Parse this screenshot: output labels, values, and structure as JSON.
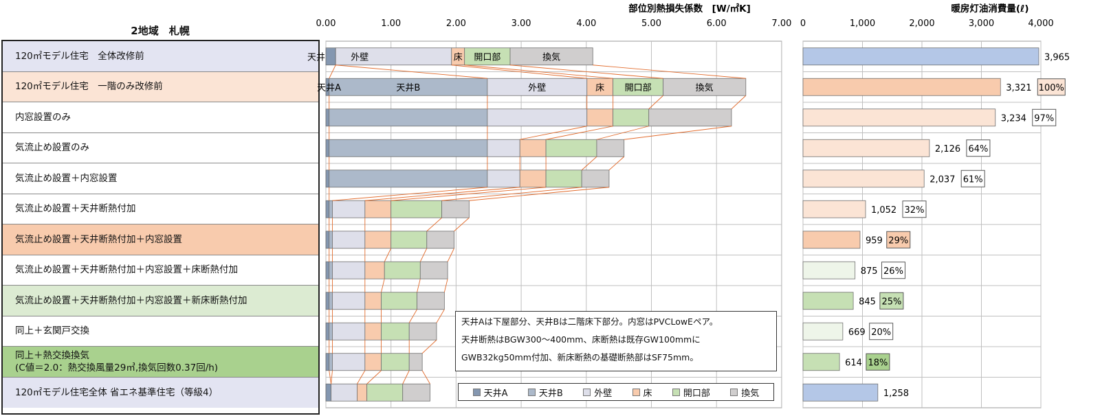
{
  "region_title": "2地域　札幌",
  "rows": [
    {
      "label": "120㎡モデル住宅　全体改修前",
      "bg": "#e3e4f2"
    },
    {
      "label": "120㎡モデル住宅　一階のみ改修前",
      "bg": "#fbe4d5"
    },
    {
      "label": "内窓設置のみ",
      "bg": "#ffffff"
    },
    {
      "label": "気流止め設置のみ",
      "bg": "#ffffff"
    },
    {
      "label": "気流止め設置＋内窓設置",
      "bg": "#ffffff"
    },
    {
      "label": "気流止め設置＋天井断熱付加",
      "bg": "#ffffff"
    },
    {
      "label": "気流止め設置＋天井断熱付加＋内窓設置",
      "bg": "#f8cbad"
    },
    {
      "label": "気流止め設置＋天井断熱付加＋内窓設置＋床断熱付加",
      "bg": "#ffffff"
    },
    {
      "label": "気流止め設置＋天井断熱付加＋内窓設置＋新床断熱付加",
      "bg": "#dcebd2"
    },
    {
      "label": "同上＋玄関戸交換",
      "bg": "#ffffff"
    },
    {
      "label": "同上＋熱交換換気\n(C値＝2.0：熱交換風量29㎥,換気回数0.37回/h)",
      "bg": "#a9d18e"
    },
    {
      "label": "120㎡モデル住宅全体 省エネ基準住宅（等級4）",
      "bg": "#e3e4f2"
    }
  ],
  "colors": {
    "天井A": "#8497b0",
    "天井B": "#acb9ca",
    "外壁": "#dedfea",
    "床": "#f8cbad",
    "開口部": "#c6e0b4",
    "換気": "#d0cece",
    "connector": "#e26b2c",
    "grid": "#bfbfbf"
  },
  "chart_data": [
    {
      "type": "bar",
      "orientation": "horizontal",
      "stacked": true,
      "title": "部位別熱損失係数　[W/㎡K]",
      "xlim": [
        0,
        7
      ],
      "xticks": [
        "0.00",
        "1.00",
        "2.00",
        "3.00",
        "4.00",
        "5.00",
        "6.00",
        "7.00"
      ],
      "categories": [
        "120㎡モデル住宅　全体改修前",
        "120㎡モデル住宅　一階のみ改修前",
        "内窓設置のみ",
        "気流止め設置のみ",
        "気流止め設置＋内窓設置",
        "気流止め設置＋天井断熱付加",
        "気流止め設置＋天井断熱付加＋内窓設置",
        "気流止め設置＋天井断熱付加＋内窓設置＋床断熱付加",
        "気流止め設置＋天井断熱付加＋内窓設置＋新床断熱付加",
        "同上＋玄関戸交換",
        "同上＋熱交換換気",
        "120㎡モデル住宅全体 省エネ基準住宅（等級4）"
      ],
      "series": [
        {
          "name": "天井A",
          "values": [
            0.15,
            0.05,
            0.05,
            0.05,
            0.05,
            0.05,
            0.05,
            0.05,
            0.05,
            0.05,
            0.05,
            0.08
          ]
        },
        {
          "name": "天井B",
          "values": [
            0,
            2.43,
            2.43,
            2.43,
            2.43,
            0.05,
            0.05,
            0.05,
            0.05,
            0.05,
            0.05,
            0
          ]
        },
        {
          "name": "外壁",
          "values": [
            1.78,
            1.53,
            1.53,
            0.5,
            0.5,
            0.5,
            0.5,
            0.5,
            0.5,
            0.5,
            0.5,
            0.4
          ]
        },
        {
          "name": "床",
          "values": [
            0.2,
            0.4,
            0.4,
            0.4,
            0.4,
            0.4,
            0.4,
            0.3,
            0.25,
            0.25,
            0.25,
            0.15
          ]
        },
        {
          "name": "開口部",
          "values": [
            0.7,
            0.77,
            0.55,
            0.78,
            0.55,
            0.78,
            0.55,
            0.55,
            0.55,
            0.43,
            0.43,
            0.55
          ]
        },
        {
          "name": "換気",
          "values": [
            1.27,
            1.27,
            1.27,
            0.42,
            0.42,
            0.42,
            0.42,
            0.42,
            0.42,
            0.42,
            0.2,
            0.42
          ]
        }
      ],
      "segment_labels": [
        {
          "row": 0,
          "labels": [
            "天井",
            "外壁",
            "床",
            "開口部",
            "換気"
          ]
        },
        {
          "row": 1,
          "labels": [
            "天井A",
            "天井B",
            "外壁",
            "床",
            "開口部",
            "換気"
          ]
        }
      ],
      "legend": [
        "天井A",
        "天井B",
        "外壁",
        "床",
        "開口部",
        "換気"
      ],
      "legend_position": "bottom-right",
      "grid": true
    },
    {
      "type": "bar",
      "orientation": "horizontal",
      "title": "暖房灯油消費量(ℓ)",
      "xlim": [
        0,
        4000
      ],
      "xticks": [
        "0",
        "1,000",
        "2,000",
        "3,000",
        "4,000"
      ],
      "categories": [
        "120㎡モデル住宅　全体改修前",
        "120㎡モデル住宅　一階のみ改修前",
        "内窓設置のみ",
        "気流止め設置のみ",
        "気流止め設置＋内窓設置",
        "気流止め設置＋天井断熱付加",
        "気流止め設置＋天井断熱付加＋内窓設置",
        "気流止め設置＋天井断熱付加＋内窓設置＋床断熱付加",
        "気流止め設置＋天井断熱付加＋内窓設置＋新床断熱付加",
        "同上＋玄関戸交換",
        "同上＋熱交換換気",
        "120㎡モデル住宅全体 省エネ基準住宅（等級4）"
      ],
      "values": [
        3965,
        3321,
        3234,
        2126,
        2037,
        1052,
        959,
        875,
        845,
        669,
        614,
        1258
      ],
      "value_labels": [
        "3,965",
        "3,321",
        "3,234",
        "2,126",
        "2,037",
        "1,052",
        "959",
        "875",
        "845",
        "669",
        "614",
        "1,258"
      ],
      "percent_labels": [
        "",
        "100%",
        "97%",
        "64%",
        "61%",
        "32%",
        "29%",
        "26%",
        "25%",
        "20%",
        "18%",
        ""
      ],
      "bar_colors": [
        "#b4c7e7",
        "#f8cbad",
        "#fbe4d5",
        "#fbe4d5",
        "#fbe4d5",
        "#fbe4d5",
        "#f8cbad",
        "#eef5e9",
        "#c6e0b4",
        "#eef5e9",
        "#c6e0b4",
        "#b4c7e7"
      ],
      "pct_box_colors": [
        "",
        "#fbe4d5",
        "#ffffff",
        "#ffffff",
        "#ffffff",
        "#ffffff",
        "#f8cbad",
        "#ffffff",
        "#c6e0b4",
        "#ffffff",
        "#a9d18e",
        ""
      ],
      "grid": true
    }
  ],
  "note": {
    "lines": [
      "天井Aは下屋部分、天井Bは二階床下部分。内窓はPVCLowEペア。",
      "天井断熱はBGW300～400mm、床断熱は既存GW100mmに",
      "GWB32kg50mm付加、新床断熱の基礎断熱部はSF75mm。"
    ]
  }
}
